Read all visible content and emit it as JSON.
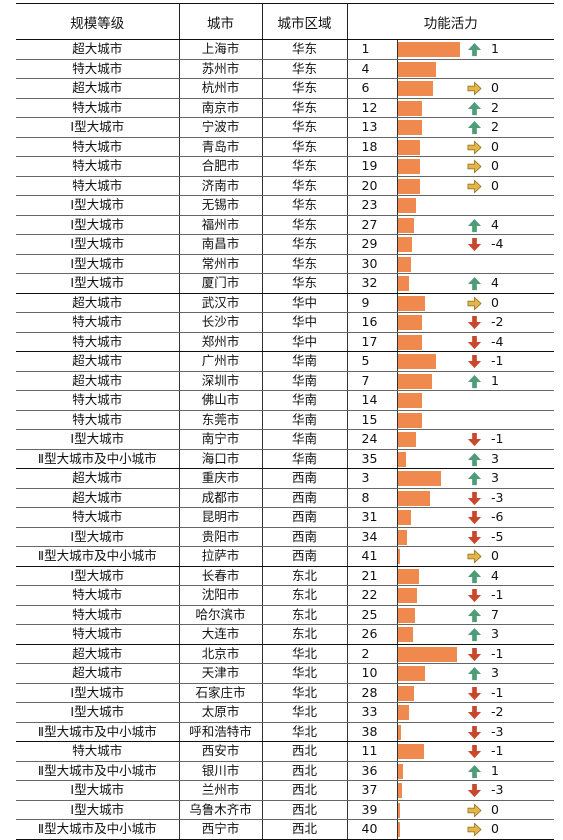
{
  "headers": [
    "规模等级",
    "城市",
    "城市区域",
    "功能活力"
  ],
  "colors": {
    "bar": "#f0894d",
    "up": "#4f9c78",
    "down": "#c9472b",
    "flat": "#e6b54a"
  },
  "rows": [
    {
      "level": "超大城市",
      "city": "上海市",
      "region": "华东",
      "rank": 1,
      "bar": 100,
      "trend": "up",
      "change": "1"
    },
    {
      "level": "特大城市",
      "city": "苏州市",
      "region": "华东",
      "rank": 4,
      "bar": 62,
      "trend": "",
      "change": ""
    },
    {
      "level": "超大城市",
      "city": "杭州市",
      "region": "华东",
      "rank": 6,
      "bar": 57,
      "trend": "flat",
      "change": "0"
    },
    {
      "level": "特大城市",
      "city": "南京市",
      "region": "华东",
      "rank": 12,
      "bar": 40,
      "trend": "up",
      "change": "2"
    },
    {
      "level": "Ⅰ型大城市",
      "city": "宁波市",
      "region": "华东",
      "rank": 13,
      "bar": 40,
      "trend": "up",
      "change": "2"
    },
    {
      "level": "特大城市",
      "city": "青岛市",
      "region": "华东",
      "rank": 18,
      "bar": 36,
      "trend": "flat",
      "change": "0"
    },
    {
      "level": "特大城市",
      "city": "合肥市",
      "region": "华东",
      "rank": 19,
      "bar": 36,
      "trend": "flat",
      "change": "0"
    },
    {
      "level": "特大城市",
      "city": "济南市",
      "region": "华东",
      "rank": 20,
      "bar": 36,
      "trend": "flat",
      "change": "0"
    },
    {
      "level": "Ⅰ型大城市",
      "city": "无锡市",
      "region": "华东",
      "rank": 23,
      "bar": 30,
      "trend": "",
      "change": ""
    },
    {
      "level": "Ⅰ型大城市",
      "city": "福州市",
      "region": "华东",
      "rank": 27,
      "bar": 27,
      "trend": "up",
      "change": "4"
    },
    {
      "level": "Ⅰ型大城市",
      "city": "南昌市",
      "region": "华东",
      "rank": 29,
      "bar": 24,
      "trend": "down",
      "change": "-4"
    },
    {
      "level": "Ⅰ型大城市",
      "city": "常州市",
      "region": "华东",
      "rank": 30,
      "bar": 22,
      "trend": "",
      "change": ""
    },
    {
      "level": "Ⅰ型大城市",
      "city": "厦门市",
      "region": "华东",
      "rank": 32,
      "bar": 18,
      "trend": "up",
      "change": "4"
    },
    {
      "level": "超大城市",
      "city": "武汉市",
      "region": "华中",
      "rank": 9,
      "bar": 45,
      "trend": "flat",
      "change": "0"
    },
    {
      "level": "特大城市",
      "city": "长沙市",
      "region": "华中",
      "rank": 16,
      "bar": 39,
      "trend": "down",
      "change": "-2"
    },
    {
      "level": "特大城市",
      "city": "郑州市",
      "region": "华中",
      "rank": 17,
      "bar": 39,
      "trend": "down",
      "change": "-4"
    },
    {
      "level": "超大城市",
      "city": "广州市",
      "region": "华南",
      "rank": 5,
      "bar": 62,
      "trend": "down",
      "change": "-1"
    },
    {
      "level": "超大城市",
      "city": "深圳市",
      "region": "华南",
      "rank": 7,
      "bar": 56,
      "trend": "up",
      "change": "1"
    },
    {
      "level": "特大城市",
      "city": "佛山市",
      "region": "华南",
      "rank": 14,
      "bar": 40,
      "trend": "",
      "change": ""
    },
    {
      "level": "特大城市",
      "city": "东莞市",
      "region": "华南",
      "rank": 15,
      "bar": 40,
      "trend": "",
      "change": ""
    },
    {
      "level": "Ⅰ型大城市",
      "city": "南宁市",
      "region": "华南",
      "rank": 24,
      "bar": 30,
      "trend": "down",
      "change": "-1"
    },
    {
      "level": "Ⅱ型大城市及中小城市",
      "city": "海口市",
      "region": "华南",
      "rank": 35,
      "bar": 13,
      "trend": "up",
      "change": "3"
    },
    {
      "level": "超大城市",
      "city": "重庆市",
      "region": "西南",
      "rank": 3,
      "bar": 70,
      "trend": "up",
      "change": "3"
    },
    {
      "level": "超大城市",
      "city": "成都市",
      "region": "西南",
      "rank": 8,
      "bar": 52,
      "trend": "down",
      "change": "-3"
    },
    {
      "level": "特大城市",
      "city": "昆明市",
      "region": "西南",
      "rank": 31,
      "bar": 22,
      "trend": "down",
      "change": "-6"
    },
    {
      "level": "Ⅰ型大城市",
      "city": "贵阳市",
      "region": "西南",
      "rank": 34,
      "bar": 16,
      "trend": "down",
      "change": "-5"
    },
    {
      "level": "Ⅱ型大城市及中小城市",
      "city": "拉萨市",
      "region": "西南",
      "rank": 41,
      "bar": 2,
      "trend": "flat",
      "change": "0"
    },
    {
      "level": "Ⅰ型大城市",
      "city": "长春市",
      "region": "东北",
      "rank": 21,
      "bar": 34,
      "trend": "up",
      "change": "4"
    },
    {
      "level": "特大城市",
      "city": "沈阳市",
      "region": "东北",
      "rank": 22,
      "bar": 32,
      "trend": "down",
      "change": "-1"
    },
    {
      "level": "特大城市",
      "city": "哈尔滨市",
      "region": "东北",
      "rank": 25,
      "bar": 28,
      "trend": "up",
      "change": "7"
    },
    {
      "level": "特大城市",
      "city": "大连市",
      "region": "东北",
      "rank": 26,
      "bar": 25,
      "trend": "up",
      "change": "3"
    },
    {
      "level": "超大城市",
      "city": "北京市",
      "region": "华北",
      "rank": 2,
      "bar": 96,
      "trend": "down",
      "change": "-1"
    },
    {
      "level": "超大城市",
      "city": "天津市",
      "region": "华北",
      "rank": 10,
      "bar": 45,
      "trend": "up",
      "change": "3"
    },
    {
      "level": "Ⅰ型大城市",
      "city": "石家庄市",
      "region": "华北",
      "rank": 28,
      "bar": 26,
      "trend": "down",
      "change": "-1"
    },
    {
      "level": "Ⅰ型大城市",
      "city": "太原市",
      "region": "华北",
      "rank": 33,
      "bar": 18,
      "trend": "down",
      "change": "-2"
    },
    {
      "level": "Ⅱ型大城市及中小城市",
      "city": "呼和浩特市",
      "region": "华北",
      "rank": 38,
      "bar": 5,
      "trend": "down",
      "change": "-3"
    },
    {
      "level": "特大城市",
      "city": "西安市",
      "region": "西北",
      "rank": 11,
      "bar": 42,
      "trend": "down",
      "change": "-1"
    },
    {
      "level": "Ⅱ型大城市及中小城市",
      "city": "银川市",
      "region": "西北",
      "rank": 36,
      "bar": 9,
      "trend": "up",
      "change": "1"
    },
    {
      "level": "Ⅰ型大城市",
      "city": "兰州市",
      "region": "西北",
      "rank": 37,
      "bar": 7,
      "trend": "down",
      "change": "-3"
    },
    {
      "level": "Ⅰ型大城市",
      "city": "乌鲁木齐市",
      "region": "西北",
      "rank": 39,
      "bar": 4,
      "trend": "flat",
      "change": "0"
    },
    {
      "level": "Ⅱ型大城市及中小城市",
      "city": "西宁市",
      "region": "西北",
      "rank": 40,
      "bar": 3,
      "trend": "flat",
      "change": "0"
    }
  ]
}
